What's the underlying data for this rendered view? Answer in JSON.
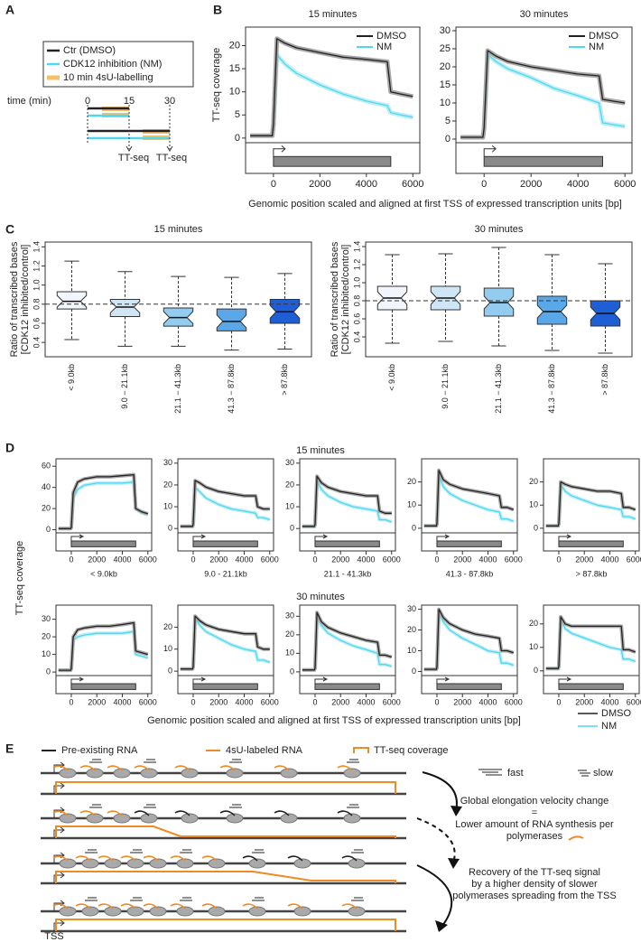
{
  "panel_labels": [
    "A",
    "B",
    "C",
    "D",
    "E"
  ],
  "schematic_a": {
    "legend": [
      "Ctr (DMSO)",
      "CDK12 inhibition (NM)",
      "10 min 4sU-labelling"
    ],
    "time_label": "time (min)",
    "time_ticks": [
      "0",
      "15",
      "30"
    ],
    "readout": [
      "TT-seq",
      "TT-seq"
    ]
  },
  "panel_b": {
    "xlabel": "Genomic position scaled and aligned at first TSS of expressed transcription units [bp]"
  },
  "panel_d": {
    "ylabel": "TT-seq coverage",
    "row_titles": [
      "15 minutes",
      "30 minutes"
    ],
    "groups": [
      "< 9.0kb",
      "9.0 - 21.1kb",
      "21.1 - 41.3kb",
      "41.3 - 87.8kb",
      "> 87.8kb"
    ],
    "xlabel": "Genomic position scaled and aligned at first TSS of expressed transcription units [bp]"
  },
  "schematic_e": {
    "legend": [
      "Pre-existing RNA",
      "4sU-labeled RNA",
      "TT-seq coverage"
    ],
    "speed": [
      "fast",
      "slow"
    ],
    "text1": [
      "Global elongation velocity change",
      "=",
      "Lower amount of RNA synthesis per",
      "polymerases"
    ],
    "text2": [
      "Recovery of the TT-seq signal",
      "by a higher density of slower",
      "polymerases spreading from the TSS"
    ],
    "tss": "TSS"
  },
  "chart_data": [
    {
      "type": "line",
      "title": "15 minutes",
      "ylabel": "TT-seq coverage",
      "legend": "upper right",
      "x": [
        -1000,
        -50,
        0,
        150,
        500,
        1000,
        2000,
        3000,
        4000,
        4900,
        5050,
        5500,
        6000
      ],
      "xlim": [
        -1200,
        6300
      ],
      "xticks": [
        0,
        2000,
        4000,
        6000
      ],
      "ylim": [
        -1,
        24
      ],
      "yticks": [
        0,
        5,
        10,
        15,
        20
      ],
      "series": [
        {
          "name": "DMSO",
          "color": "#222222",
          "values": [
            0.5,
            0.5,
            3,
            21.5,
            20.5,
            19.5,
            18.5,
            17.5,
            17,
            16.5,
            10,
            9.5,
            9
          ]
        },
        {
          "name": "NM",
          "color": "#4fd8f0",
          "values": [
            0.5,
            0.5,
            3,
            18,
            16,
            14,
            11.5,
            9.5,
            8,
            7,
            5.5,
            5,
            4.5
          ]
        }
      ]
    },
    {
      "type": "line",
      "title": "30 minutes",
      "legend": "upper right",
      "x": [
        -1000,
        -50,
        0,
        150,
        500,
        1000,
        2000,
        3000,
        4000,
        4900,
        5050,
        5500,
        6000
      ],
      "xlim": [
        -1200,
        6300
      ],
      "xticks": [
        0,
        2000,
        4000,
        6000
      ],
      "ylim": [
        -1,
        31
      ],
      "yticks": [
        0,
        5,
        10,
        15,
        20,
        25,
        30
      ],
      "series": [
        {
          "name": "DMSO",
          "color": "#222222",
          "values": [
            0.5,
            0.5,
            3,
            24.5,
            23,
            21.5,
            20,
            19,
            18,
            17.5,
            11,
            10.5,
            10
          ]
        },
        {
          "name": "NM",
          "color": "#4fd8f0",
          "values": [
            0.5,
            0.5,
            3,
            23.5,
            21.5,
            19.5,
            17,
            14,
            12,
            10,
            4.5,
            4,
            3.5
          ]
        }
      ]
    },
    {
      "type": "box",
      "title": "15 minutes",
      "ylabel": [
        "Ratio of transcribed bases",
        "[CDK12 inhibited/control]"
      ],
      "categories": [
        "< 9.0kb",
        "9.0 − 21.1kb",
        "21.1 − 41.3kb",
        "41.3 − 87.8kb",
        "> 87.8kb"
      ],
      "colors": [
        "#f2f6fc",
        "#cfe6f5",
        "#93ccef",
        "#5aa8e8",
        "#1f5fd6"
      ],
      "ylim": [
        0.25,
        1.45
      ],
      "yticks": [
        0.4,
        0.6,
        0.8,
        {
          "value": 1,
          "label": "1.0"
        },
        1.2,
        1.4
      ],
      "reference_line": 0.8,
      "boxes": [
        {
          "low": 0.43,
          "q1": 0.75,
          "median": 0.83,
          "q3": 0.93,
          "high": 1.25
        },
        {
          "low": 0.36,
          "q1": 0.67,
          "median": 0.77,
          "q3": 0.85,
          "high": 1.14
        },
        {
          "low": 0.36,
          "q1": 0.57,
          "median": 0.66,
          "q3": 0.76,
          "high": 1.09
        },
        {
          "low": 0.32,
          "q1": 0.52,
          "median": 0.62,
          "q3": 0.75,
          "high": 1.08
        },
        {
          "low": 0.33,
          "q1": 0.6,
          "median": 0.72,
          "q3": 0.85,
          "high": 1.12
        }
      ]
    },
    {
      "type": "box",
      "title": "30 minutes",
      "ylabel": [
        "Ratio of transcribed bases",
        "[CDK12 inhibited/control]"
      ],
      "categories": [
        "< 9.0kb",
        "9.0 − 21.1kb",
        "21.1 − 41.3kb",
        "41.3 − 87.8kb",
        "> 87.8kb"
      ],
      "colors": [
        "#f2f6fc",
        "#cfe6f5",
        "#93ccef",
        "#5aa8e8",
        "#1f5fd6"
      ],
      "ylim": [
        0.18,
        1.45
      ],
      "yticks": [
        0.4,
        0.6,
        0.8,
        {
          "value": 1,
          "label": "1.0"
        },
        1.2,
        1.4
      ],
      "reference_line": 0.8,
      "boxes": [
        {
          "low": 0.33,
          "q1": 0.7,
          "median": 0.83,
          "q3": 0.96,
          "high": 1.31
        },
        {
          "low": 0.35,
          "q1": 0.7,
          "median": 0.83,
          "q3": 0.96,
          "high": 1.32
        },
        {
          "low": 0.3,
          "q1": 0.63,
          "median": 0.78,
          "q3": 0.94,
          "high": 1.39
        },
        {
          "low": 0.25,
          "q1": 0.54,
          "median": 0.68,
          "q3": 0.85,
          "high": 1.31
        },
        {
          "low": 0.22,
          "q1": 0.52,
          "median": 0.66,
          "q3": 0.8,
          "high": 1.21
        }
      ]
    },
    {
      "type": "line",
      "x": [
        -1000,
        -50,
        0,
        150,
        500,
        1000,
        2000,
        3000,
        4000,
        4900,
        5050,
        5500,
        6000
      ],
      "xlim": [
        -1200,
        6300
      ],
      "xticks": [
        0,
        2000,
        4000,
        6000
      ],
      "ylim": [
        -3,
        67
      ],
      "yticks": [
        0,
        20,
        40,
        60
      ],
      "series": [
        {
          "name": "DMSO",
          "color": "#222222",
          "values": [
            1,
            1,
            2,
            35,
            45,
            48,
            50,
            50,
            51,
            52,
            20,
            17,
            15
          ]
        },
        {
          "name": "NM",
          "color": "#4fd8f0",
          "values": [
            1,
            1,
            2,
            30,
            38,
            42,
            44,
            44,
            44,
            45,
            20,
            16,
            14
          ]
        }
      ]
    },
    {
      "type": "line",
      "x": [
        -1000,
        -50,
        0,
        150,
        500,
        1000,
        2000,
        3000,
        4000,
        4900,
        5050,
        5500,
        6000
      ],
      "xlim": [
        -1200,
        6300
      ],
      "xticks": [
        0,
        2000,
        4000,
        6000
      ],
      "ylim": [
        -2,
        32
      ],
      "yticks": [
        0,
        10,
        20,
        30
      ],
      "series": [
        {
          "name": "DMSO",
          "color": "#222222",
          "values": [
            1,
            1,
            2,
            22,
            21,
            19,
            17,
            16,
            15,
            15,
            10,
            9,
            9
          ]
        },
        {
          "name": "NM",
          "color": "#4fd8f0",
          "values": [
            1,
            1,
            2,
            19,
            17,
            14,
            11,
            9,
            8,
            7,
            5,
            5,
            4
          ]
        }
      ]
    },
    {
      "type": "line",
      "x": [
        -1000,
        -50,
        0,
        150,
        500,
        1000,
        2000,
        3000,
        4000,
        4900,
        5050,
        5500,
        6000
      ],
      "xlim": [
        -1200,
        6300
      ],
      "xticks": [
        0,
        2000,
        4000,
        6000
      ],
      "ylim": [
        -2,
        32
      ],
      "yticks": [
        0,
        10,
        20,
        30
      ],
      "series": [
        {
          "name": "DMSO",
          "color": "#222222",
          "values": [
            1,
            1,
            2,
            24,
            21,
            19,
            17,
            16,
            15,
            15,
            8,
            7,
            7
          ]
        },
        {
          "name": "NM",
          "color": "#4fd8f0",
          "values": [
            1,
            1,
            2,
            22,
            18,
            15,
            12,
            10,
            9,
            8,
            4,
            4,
            3
          ]
        }
      ]
    },
    {
      "type": "line",
      "x": [
        -1000,
        -50,
        0,
        150,
        500,
        1000,
        2000,
        3000,
        4000,
        4900,
        5050,
        5500,
        6000
      ],
      "xlim": [
        -1200,
        6300
      ],
      "xticks": [
        0,
        2000,
        4000,
        6000
      ],
      "ylim": [
        -2,
        30
      ],
      "yticks": [
        0,
        10,
        20
      ],
      "series": [
        {
          "name": "DMSO",
          "color": "#222222",
          "values": [
            1,
            1,
            2,
            25,
            21,
            19,
            17,
            16,
            15,
            14,
            9,
            9,
            8
          ]
        },
        {
          "name": "NM",
          "color": "#4fd8f0",
          "values": [
            1,
            1,
            2,
            23,
            18,
            15,
            12,
            10,
            8,
            7,
            4,
            4,
            3
          ]
        }
      ]
    },
    {
      "type": "line",
      "x": [
        -1000,
        -50,
        0,
        150,
        500,
        1000,
        2000,
        3000,
        4000,
        4900,
        5050,
        5500,
        6000
      ],
      "xlim": [
        -1200,
        6300
      ],
      "xticks": [
        0,
        2000,
        4000,
        6000
      ],
      "ylim": [
        -2,
        30
      ],
      "yticks": [
        0,
        10,
        20
      ],
      "series": [
        {
          "name": "DMSO",
          "color": "#222222",
          "values": [
            1,
            1,
            2,
            20,
            19,
            18,
            17,
            16,
            16,
            15,
            9,
            9,
            8
          ]
        },
        {
          "name": "NM",
          "color": "#4fd8f0",
          "values": [
            1,
            1,
            2,
            19,
            16,
            14,
            12,
            10,
            9,
            8,
            5,
            5,
            4
          ]
        }
      ]
    },
    {
      "type": "line",
      "x": [
        -1000,
        -50,
        0,
        150,
        500,
        1000,
        2000,
        3000,
        4000,
        4900,
        5050,
        5500,
        6000
      ],
      "xlim": [
        -1200,
        6300
      ],
      "xticks": [
        0,
        2000,
        4000,
        6000
      ],
      "ylim": [
        -2,
        38
      ],
      "yticks": [
        0,
        10,
        20,
        30
      ],
      "series": [
        {
          "name": "DMSO",
          "color": "#222222",
          "values": [
            1,
            1,
            2,
            20,
            24,
            25,
            26,
            26,
            27,
            28,
            12,
            11,
            10
          ]
        },
        {
          "name": "NM",
          "color": "#4fd8f0",
          "values": [
            1,
            1,
            2,
            18,
            20,
            21,
            22,
            22,
            22,
            23,
            10,
            9,
            8
          ]
        }
      ]
    },
    {
      "type": "line",
      "x": [
        -1000,
        -50,
        0,
        150,
        500,
        1000,
        2000,
        3000,
        4000,
        4900,
        5050,
        5500,
        6000
      ],
      "xlim": [
        -1200,
        6300
      ],
      "xticks": [
        0,
        2000,
        4000,
        6000
      ],
      "ylim": [
        -2,
        30
      ],
      "yticks": [
        0,
        10,
        20
      ],
      "series": [
        {
          "name": "DMSO",
          "color": "#222222",
          "values": [
            1,
            1,
            2,
            25,
            23,
            21,
            19,
            18,
            17,
            17,
            11,
            10,
            10
          ]
        },
        {
          "name": "NM",
          "color": "#4fd8f0",
          "values": [
            1,
            1,
            2,
            24,
            21,
            18,
            15,
            12,
            10,
            9,
            5,
            5,
            4
          ]
        }
      ]
    },
    {
      "type": "line",
      "x": [
        -1000,
        -50,
        0,
        150,
        500,
        1000,
        2000,
        3000,
        4000,
        4900,
        5050,
        5500,
        6000
      ],
      "xlim": [
        -1200,
        6300
      ],
      "xticks": [
        0,
        2000,
        4000,
        6000
      ],
      "ylim": [
        -2,
        36
      ],
      "yticks": [
        0,
        10,
        20,
        30
      ],
      "series": [
        {
          "name": "DMSO",
          "color": "#222222",
          "values": [
            1,
            1,
            2,
            32,
            27,
            24,
            21,
            19,
            17,
            16,
            9,
            9,
            8
          ]
        },
        {
          "name": "NM",
          "color": "#4fd8f0",
          "values": [
            1,
            1,
            2,
            30,
            25,
            21,
            17,
            14,
            12,
            10,
            4,
            4,
            3
          ]
        }
      ]
    },
    {
      "type": "line",
      "x": [
        -1000,
        -50,
        0,
        150,
        500,
        1000,
        2000,
        3000,
        4000,
        4900,
        5050,
        5500,
        6000
      ],
      "xlim": [
        -1200,
        6300
      ],
      "xticks": [
        0,
        2000,
        4000,
        6000
      ],
      "ylim": [
        -2,
        32
      ],
      "yticks": [
        0,
        10,
        20,
        30
      ],
      "series": [
        {
          "name": "DMSO",
          "color": "#222222",
          "values": [
            1,
            1,
            2,
            30,
            26,
            23,
            20,
            18,
            17,
            16,
            10,
            10,
            9
          ]
        },
        {
          "name": "NM",
          "color": "#4fd8f0",
          "values": [
            1,
            1,
            2,
            29,
            24,
            20,
            16,
            13,
            10,
            9,
            4,
            4,
            3
          ]
        }
      ]
    },
    {
      "type": "line",
      "x": [
        -1000,
        -50,
        0,
        150,
        500,
        1000,
        2000,
        3000,
        4000,
        4900,
        5050,
        5500,
        6000
      ],
      "xlim": [
        -1200,
        6300
      ],
      "xticks": [
        0,
        2000,
        4000,
        6000
      ],
      "ylim": [
        -2,
        28
      ],
      "yticks": [
        0,
        10,
        20
      ],
      "series": [
        {
          "name": "DMSO",
          "color": "#222222",
          "values": [
            1,
            1,
            2,
            23,
            20,
            19,
            19,
            19,
            19,
            19,
            9,
            9,
            8
          ]
        },
        {
          "name": "NM",
          "color": "#4fd8f0",
          "values": [
            1,
            1,
            2,
            22,
            18,
            16,
            14,
            12,
            10,
            9,
            5,
            5,
            4
          ]
        }
      ]
    }
  ]
}
